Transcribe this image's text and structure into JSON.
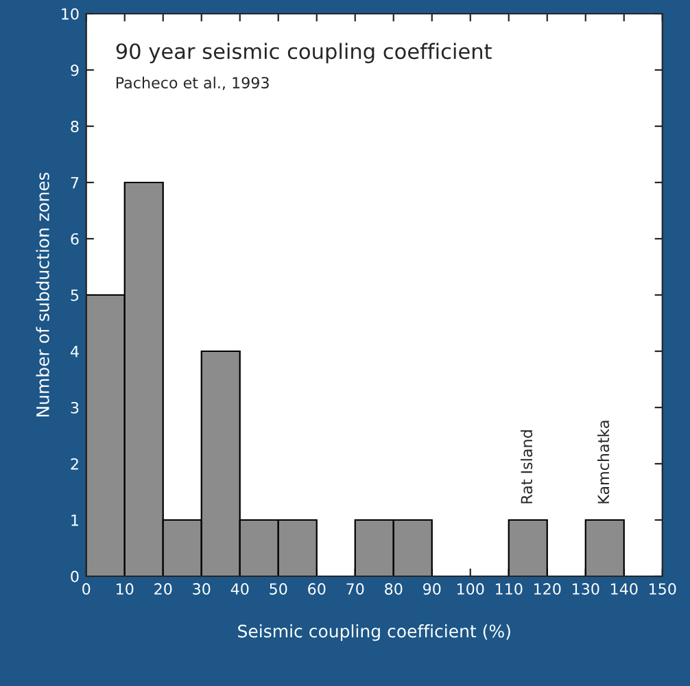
{
  "chart_data": {
    "type": "histogram",
    "title": "90 year seismic coupling coefficient",
    "subtitle": "Pacheco et al., 1993",
    "xlabel": "Seismic coupling coefficient (%)",
    "ylabel": "Number of subduction zones",
    "bins": [
      0,
      10,
      20,
      30,
      40,
      50,
      60,
      70,
      80,
      90,
      100,
      110,
      120,
      130,
      140,
      150
    ],
    "values": [
      5,
      7,
      1,
      4,
      1,
      1,
      0,
      1,
      1,
      0,
      0,
      1,
      0,
      1,
      0
    ],
    "color": "#8c8c8c",
    "xlim": [
      0,
      150
    ],
    "xticks": [
      0,
      10,
      20,
      30,
      40,
      50,
      60,
      70,
      80,
      90,
      100,
      110,
      120,
      130,
      140,
      150
    ],
    "ylim": [
      0,
      10
    ],
    "yticks": [
      0,
      1,
      2,
      3,
      4,
      5,
      6,
      7,
      8,
      9,
      10
    ],
    "grid": false,
    "annotations": [
      {
        "text": "Rat Island",
        "x": 115,
        "y": 1
      },
      {
        "text": "Kamchatka",
        "x": 135,
        "y": 1
      }
    ]
  }
}
